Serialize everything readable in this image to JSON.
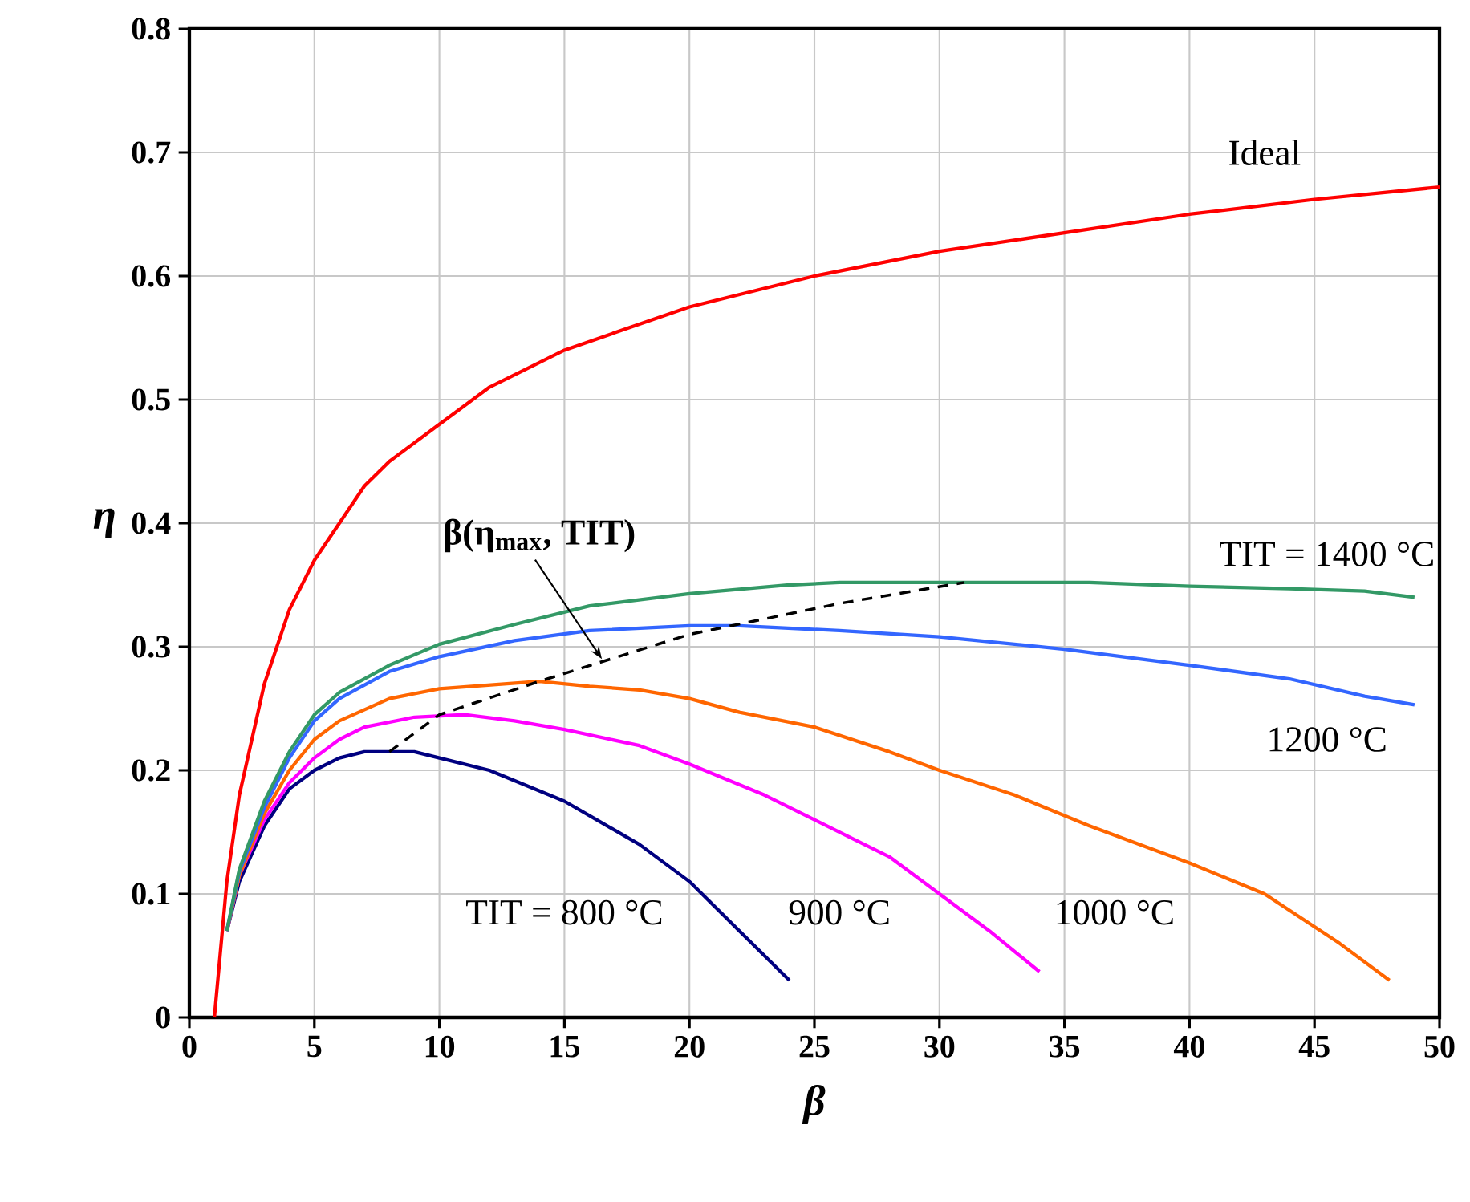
{
  "chart_data": {
    "type": "line",
    "xlabel": "β",
    "ylabel": "η",
    "xlim": [
      0,
      50
    ],
    "xticks": [
      0,
      5,
      10,
      15,
      20,
      25,
      30,
      35,
      40,
      45,
      50
    ],
    "ylim": [
      0,
      0.8
    ],
    "yticks": [
      0,
      0.1,
      0.2,
      0.3,
      0.4,
      0.5,
      0.6,
      0.7,
      0.8
    ],
    "grid": true,
    "series": [
      {
        "name": "Ideal",
        "color": "#ff0000",
        "x": [
          1,
          1.5,
          2,
          3,
          4,
          5,
          6,
          7,
          8,
          10,
          12,
          15,
          20,
          25,
          30,
          35,
          40,
          45,
          50
        ],
        "values": [
          0,
          0.11,
          0.18,
          0.27,
          0.33,
          0.37,
          0.4,
          0.43,
          0.45,
          0.48,
          0.51,
          0.54,
          0.575,
          0.6,
          0.62,
          0.635,
          0.65,
          0.662,
          0.672
        ]
      },
      {
        "name": "TIT = 800 °C",
        "color": "#000080",
        "x": [
          1.5,
          2,
          3,
          4,
          5,
          6,
          7,
          9,
          10,
          12,
          15,
          18,
          20,
          22,
          24
        ],
        "values": [
          0.07,
          0.11,
          0.155,
          0.185,
          0.2,
          0.21,
          0.215,
          0.215,
          0.21,
          0.2,
          0.175,
          0.14,
          0.11,
          0.07,
          0.03
        ]
      },
      {
        "name": "900 °C",
        "color": "#ff00ff",
        "x": [
          1.5,
          2,
          3,
          4,
          5,
          6,
          7,
          9,
          11,
          13,
          15,
          18,
          20,
          23,
          25,
          28,
          30,
          32,
          34
        ],
        "values": [
          0.07,
          0.115,
          0.16,
          0.19,
          0.21,
          0.225,
          0.235,
          0.243,
          0.245,
          0.24,
          0.233,
          0.22,
          0.205,
          0.18,
          0.16,
          0.13,
          0.1,
          0.07,
          0.037
        ]
      },
      {
        "name": "1000 °C",
        "color": "#ff6600",
        "x": [
          1.5,
          2,
          3,
          4,
          5,
          6,
          8,
          10,
          14,
          16,
          18,
          20,
          22,
          25,
          28,
          30,
          33,
          36,
          40,
          43,
          46,
          48
        ],
        "values": [
          0.07,
          0.115,
          0.165,
          0.2,
          0.225,
          0.24,
          0.258,
          0.266,
          0.272,
          0.268,
          0.265,
          0.258,
          0.247,
          0.235,
          0.215,
          0.2,
          0.18,
          0.155,
          0.125,
          0.1,
          0.06,
          0.03
        ]
      },
      {
        "name": "1200 °C",
        "color": "#3366ff",
        "x": [
          1.5,
          2,
          3,
          4,
          5,
          6,
          8,
          10,
          13,
          16,
          20,
          22,
          26,
          30,
          35,
          40,
          44,
          47,
          49
        ],
        "values": [
          0.07,
          0.118,
          0.17,
          0.21,
          0.24,
          0.258,
          0.28,
          0.292,
          0.305,
          0.313,
          0.317,
          0.317,
          0.313,
          0.308,
          0.298,
          0.285,
          0.274,
          0.26,
          0.253
        ]
      },
      {
        "name": "TIT = 1400 °C",
        "color": "#339966",
        "x": [
          1.5,
          2,
          3,
          4,
          5,
          6,
          8,
          10,
          13,
          16,
          20,
          24,
          26,
          30,
          36,
          40,
          44,
          47,
          49
        ],
        "values": [
          0.07,
          0.12,
          0.175,
          0.215,
          0.245,
          0.263,
          0.285,
          0.302,
          0.318,
          0.333,
          0.343,
          0.35,
          0.352,
          0.352,
          0.352,
          0.349,
          0.347,
          0.345,
          0.34
        ]
      },
      {
        "color": "#000000",
        "line_style": "dashed",
        "x": [
          8,
          10,
          14,
          20,
          26,
          31
        ],
        "values": [
          0.215,
          0.245,
          0.272,
          0.31,
          0.335,
          0.352
        ]
      }
    ],
    "annotations": [
      {
        "text": "β(η$_{max}$, TIT)",
        "x": 16.5,
        "y": 0.29
      }
    ]
  }
}
